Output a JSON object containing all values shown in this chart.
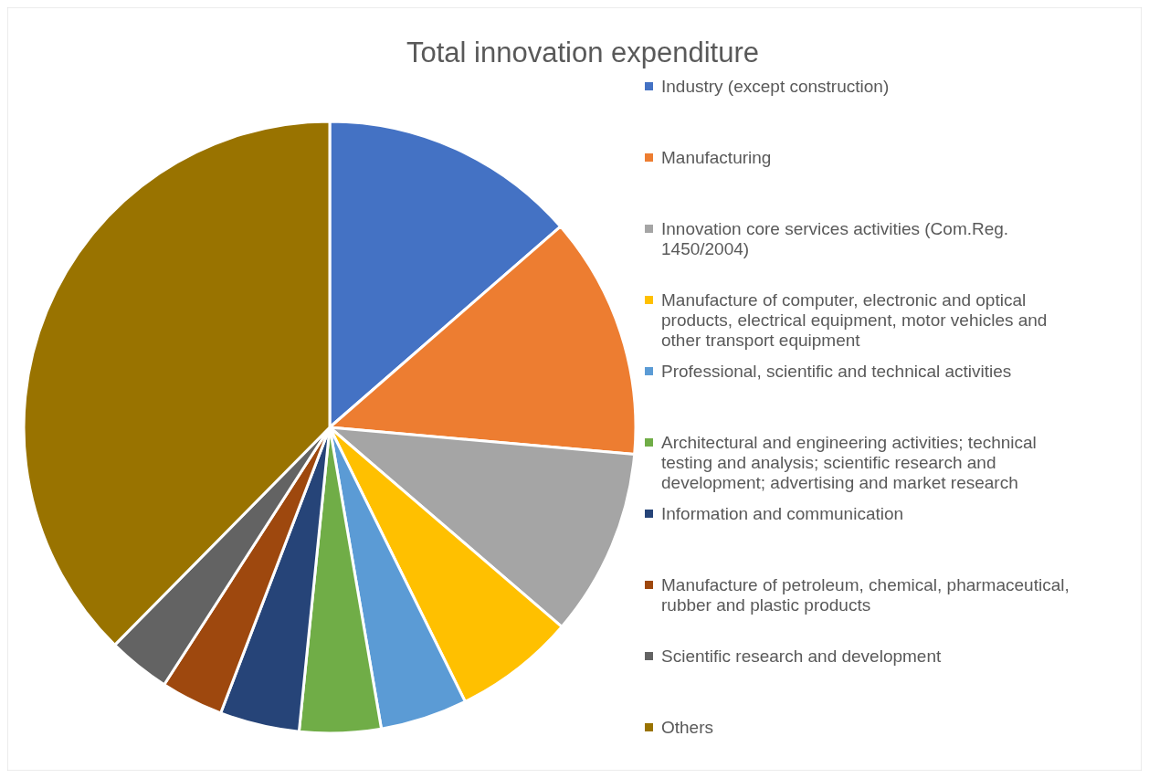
{
  "chart_data": {
    "type": "pie",
    "title": "Total innovation expenditure",
    "categories": [
      "Industry (except construction)",
      "Manufacturing",
      "Innovation core services activities (Com.Reg. 1450/2004)",
      "Manufacture of computer, electronic and optical products, electrical equipment, motor vehicles and other transport equipment",
      "Professional, scientific and technical activities",
      "Architectural and engineering activities; technical testing and analysis; scientific research and development; advertising and market research",
      "Information and communication",
      "Manufacture of petroleum, chemical, pharmaceutical, rubber and plastic products",
      "Scientific research and development",
      "Others"
    ],
    "values": [
      13.6,
      12.8,
      9.9,
      6.4,
      4.6,
      4.3,
      4.2,
      3.3,
      3.3,
      37.6
    ],
    "colors": [
      "#4472c4",
      "#ed7d31",
      "#a5a5a5",
      "#ffc000",
      "#5b9bd5",
      "#70ad47",
      "#264478",
      "#9e480e",
      "#636363",
      "#997300"
    ],
    "legend": "right"
  }
}
